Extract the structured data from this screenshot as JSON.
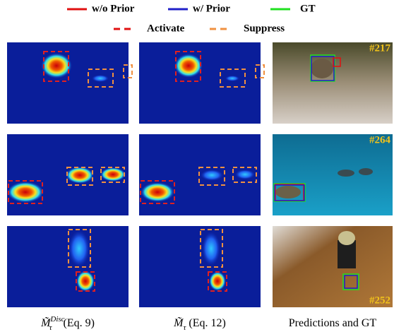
{
  "legend": {
    "items": [
      "w/o Prior",
      "w/ Prior",
      "GT",
      "Activate",
      "Suppress"
    ]
  },
  "frames": [
    "#217",
    "#264",
    "#252"
  ],
  "captions": [
    {
      "symbol": "M̃",
      "sub": "τ",
      "sup": "Disc",
      "ref": "(Eq. 9)"
    },
    {
      "symbol": "M̃",
      "sub": "τ",
      "ref": "(Eq. 12)"
    },
    {
      "text": "Predictions and GT"
    }
  ]
}
